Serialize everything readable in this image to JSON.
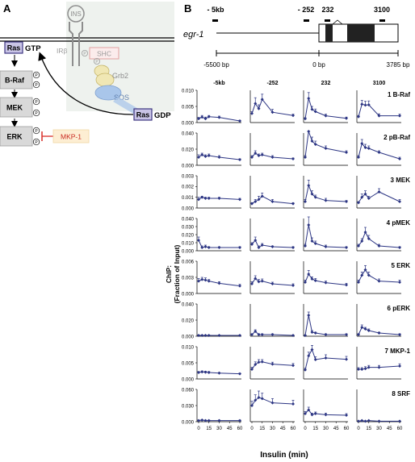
{
  "panel_a": {
    "label": "A",
    "ins": "INS",
    "irb": "IRβ",
    "p": "P",
    "shc": "SHC",
    "grb2": "Grb2",
    "sos": "SOS",
    "ras_gtp": "Ras",
    "gtp": "GTP",
    "ras_gdp": "Ras",
    "gdp": "GDP",
    "cascade": [
      {
        "name": "B-Raf",
        "phospho": 2
      },
      {
        "name": "MEK",
        "phospho": 2
      },
      {
        "name": "ERK",
        "phospho": 2
      }
    ],
    "mkp1": "MKP-1",
    "colors": {
      "ras_fill": "#c9c4e6",
      "ras_stroke": "#3d3580",
      "kinase_fill": "#d9d9d9",
      "mkp1_fill": "#fdeed3",
      "mkp1_text": "#c8261e",
      "inhibit": "#d9302a",
      "grb2_fill": "#f0e7b4",
      "sos_fill": "#a9c6ea",
      "faded": "#9a9a9a",
      "shc_stroke": "#e2a0a0"
    }
  },
  "panel_b": {
    "label": "B",
    "gene": "egr-1",
    "amplicons": [
      "- 5kb",
      "- 252",
      "232",
      "3100"
    ],
    "scale": {
      "left": "-5500 bp",
      "mid": "0 bp",
      "right": "3785 bp"
    },
    "columns": [
      "-5kb",
      "-252",
      "232",
      "3100"
    ],
    "y_axis_title": "ChIP:\n(Fraction of Input)",
    "x_axis_title": "Insulin (min)",
    "x_ticks": [
      "0",
      "15",
      "30",
      "45",
      "60"
    ],
    "series_color": "#2c3583"
  },
  "chart_data": {
    "type": "line",
    "x": [
      0,
      5,
      10,
      15,
      30,
      60
    ],
    "xlabel": "Insulin (min)",
    "ylabel": "ChIP: (Fraction of Input)",
    "columns": [
      "-5kb",
      "-252",
      "232",
      "3100"
    ],
    "rows": [
      {
        "index": "1",
        "name": "B-Raf",
        "yticks": [
          "0.000",
          "0.005",
          "0.010"
        ],
        "ylim": [
          0,
          0.01
        ],
        "series": [
          {
            "values": [
              0.0012,
              0.0017,
              0.0012,
              0.0018,
              0.0016,
              0.0005
            ],
            "err": [
              0.0004,
              0.0005,
              0.0005,
              0.0004,
              0.0004,
              0.0002
            ]
          },
          {
            "values": [
              0.0028,
              0.0059,
              0.0043,
              0.0072,
              0.0032,
              0.0022
            ],
            "err": [
              0.0006,
              0.0018,
              0.0012,
              0.0016,
              0.0009,
              0.0004
            ]
          },
          {
            "values": [
              0.0012,
              0.0075,
              0.0041,
              0.0034,
              0.0021,
              0.0013
            ],
            "err": [
              0.0003,
              0.0018,
              0.0009,
              0.0008,
              0.0005,
              0.0004
            ]
          },
          {
            "values": [
              0.0018,
              0.0057,
              0.0054,
              0.0055,
              0.0021,
              0.0021
            ],
            "err": [
              0.0004,
              0.0012,
              0.0012,
              0.0012,
              0.0006,
              0.0005
            ]
          }
        ]
      },
      {
        "index": "2",
        "name": "pB-Raf",
        "yticks": [
          "0.000",
          "0.020",
          "0.040"
        ],
        "ylim": [
          0,
          0.04
        ],
        "series": [
          {
            "values": [
              0.01,
              0.013,
              0.011,
              0.012,
              0.01,
              0.007
            ],
            "err": [
              0.003,
              0.002,
              0.002,
              0.002,
              0.002,
              0.001
            ]
          },
          {
            "values": [
              0.01,
              0.015,
              0.012,
              0.013,
              0.01,
              0.008
            ],
            "err": [
              0.002,
              0.003,
              0.002,
              0.002,
              0.002,
              0.001
            ]
          },
          {
            "values": [
              0.01,
              0.047,
              0.03,
              0.026,
              0.021,
              0.016
            ],
            "err": [
              0.002,
              0.008,
              0.005,
              0.004,
              0.003,
              0.002
            ]
          },
          {
            "values": [
              0.01,
              0.027,
              0.022,
              0.021,
              0.016,
              0.008
            ],
            "err": [
              0.002,
              0.005,
              0.004,
              0.003,
              0.002,
              0.002
            ]
          }
        ]
      },
      {
        "index": "3",
        "name": "MEK",
        "yticks": [
          "0.000",
          "0.001",
          "0.002",
          "0.003"
        ],
        "ylim": [
          0,
          0.003
        ],
        "series": [
          {
            "values": [
              0.0008,
              0.001,
              0.0009,
              0.0009,
              0.0009,
              0.0008
            ],
            "err": [
              0.0002,
              0.0001,
              0.0001,
              0.0001,
              0.0001,
              0.0001
            ]
          },
          {
            "values": [
              0.0004,
              0.0006,
              0.0008,
              0.0011,
              0.0006,
              0.0004
            ],
            "err": [
              0.0001,
              0.0002,
              0.0003,
              0.0003,
              0.0002,
              0.0001
            ]
          },
          {
            "values": [
              0.0006,
              0.0021,
              0.0013,
              0.001,
              0.0007,
              0.0006
            ],
            "err": [
              0.0002,
              0.0005,
              0.0003,
              0.0002,
              0.0002,
              0.0001
            ]
          },
          {
            "values": [
              0.0005,
              0.001,
              0.0013,
              0.0009,
              0.0015,
              0.0006
            ],
            "err": [
              0.0001,
              0.0003,
              0.0003,
              0.0002,
              0.0003,
              0.0002
            ]
          }
        ]
      },
      {
        "index": "4",
        "name": "pMEK",
        "yticks": [
          "0.000",
          "0.010",
          "0.020",
          "0.030",
          "0.040"
        ],
        "ylim": [
          0,
          0.04
        ],
        "series": [
          {
            "values": [
              0.013,
              0.004,
              0.005,
              0.004,
              0.004,
              0.004
            ],
            "err": [
              0.004,
              0.002,
              0.002,
              0.001,
              0.001,
              0.001
            ]
          },
          {
            "values": [
              0.008,
              0.013,
              0.004,
              0.007,
              0.005,
              0.004
            ],
            "err": [
              0.002,
              0.004,
              0.002,
              0.002,
              0.001,
              0.001
            ]
          },
          {
            "values": [
              0.006,
              0.032,
              0.012,
              0.009,
              0.005,
              0.004
            ],
            "err": [
              0.002,
              0.01,
              0.004,
              0.003,
              0.002,
              0.001
            ]
          },
          {
            "values": [
              0.006,
              0.012,
              0.023,
              0.015,
              0.006,
              0.004
            ],
            "err": [
              0.002,
              0.003,
              0.006,
              0.004,
              0.002,
              0.001
            ]
          }
        ]
      },
      {
        "index": "5",
        "name": "ERK",
        "yticks": [
          "0.000",
          "0.003",
          "0.006"
        ],
        "ylim": [
          0,
          0.006
        ],
        "series": [
          {
            "values": [
              0.0023,
              0.0026,
              0.0025,
              0.0023,
              0.0019,
              0.0014
            ],
            "err": [
              0.0005,
              0.0004,
              0.0004,
              0.0003,
              0.0003,
              0.0003
            ]
          },
          {
            "values": [
              0.0018,
              0.0028,
              0.0022,
              0.0023,
              0.0018,
              0.0015
            ],
            "err": [
              0.0004,
              0.0005,
              0.0004,
              0.0004,
              0.0003,
              0.0003
            ]
          },
          {
            "values": [
              0.0021,
              0.0036,
              0.0027,
              0.0024,
              0.002,
              0.0016
            ],
            "err": [
              0.0004,
              0.0007,
              0.0004,
              0.0004,
              0.0003,
              0.0003
            ]
          },
          {
            "values": [
              0.0021,
              0.0034,
              0.0044,
              0.0034,
              0.0023,
              0.0021
            ],
            "err": [
              0.0004,
              0.0006,
              0.0008,
              0.0006,
              0.0004,
              0.0004
            ]
          }
        ]
      },
      {
        "index": "6",
        "name": "pERK",
        "yticks": [
          "0.000",
          "0.020",
          "0.040"
        ],
        "ylim": [
          0,
          0.04
        ],
        "series": [
          {
            "values": [
              0.001,
              0.001,
              0.001,
              0.001,
              0.001,
              0.001
            ],
            "err": [
              0.0005,
              0.0005,
              0.0005,
              0.0005,
              0.0005,
              0.0005
            ]
          },
          {
            "values": [
              0.002,
              0.006,
              0.002,
              0.002,
              0.002,
              0.001
            ],
            "err": [
              0.001,
              0.002,
              0.001,
              0.001,
              0.001,
              0.0005
            ]
          },
          {
            "values": [
              0.001,
              0.026,
              0.005,
              0.004,
              0.002,
              0.002
            ],
            "err": [
              0.0005,
              0.004,
              0.002,
              0.001,
              0.001,
              0.001
            ]
          },
          {
            "values": [
              0.002,
              0.011,
              0.009,
              0.007,
              0.004,
              0.002
            ],
            "err": [
              0.001,
              0.003,
              0.002,
              0.002,
              0.001,
              0.001
            ]
          }
        ]
      },
      {
        "index": "7",
        "name": "MKP-1",
        "yticks": [
          "0.000",
          "0.005",
          "0.010"
        ],
        "ylim": [
          0,
          0.01
        ],
        "series": [
          {
            "values": [
              0.002,
              0.0022,
              0.0021,
              0.002,
              0.0018,
              0.0016
            ],
            "err": [
              0.0003,
              0.0003,
              0.0003,
              0.0003,
              0.0002,
              0.0002
            ]
          },
          {
            "values": [
              0.003,
              0.0045,
              0.0052,
              0.0053,
              0.0046,
              0.0042
            ],
            "err": [
              0.0006,
              0.0008,
              0.0008,
              0.0007,
              0.0006,
              0.0006
            ]
          },
          {
            "values": [
              0.0028,
              0.0072,
              0.0091,
              0.006,
              0.0065,
              0.0061
            ],
            "err": [
              0.0005,
              0.0011,
              0.0013,
              0.0009,
              0.001,
              0.0009
            ]
          },
          {
            "values": [
              0.003,
              0.003,
              0.0032,
              0.0036,
              0.0036,
              0.004
            ],
            "err": [
              0.0005,
              0.0005,
              0.0006,
              0.0006,
              0.0006,
              0.0007
            ]
          }
        ]
      },
      {
        "index": "8",
        "name": "SRF",
        "yticks": [
          "0.000",
          "0.030",
          "0.060"
        ],
        "ylim": [
          0,
          0.06
        ],
        "series": [
          {
            "values": [
              0.002,
              0.003,
              0.002,
              0.002,
              0.002,
              0.002
            ],
            "err": [
              0.001,
              0.001,
              0.001,
              0.001,
              0.001,
              0.001
            ]
          },
          {
            "values": [
              0.03,
              0.04,
              0.045,
              0.043,
              0.035,
              0.033
            ],
            "err": [
              0.008,
              0.01,
              0.012,
              0.01,
              0.008,
              0.007
            ]
          },
          {
            "values": [
              0.015,
              0.022,
              0.013,
              0.015,
              0.013,
              0.012
            ],
            "err": [
              0.004,
              0.005,
              0.003,
              0.003,
              0.003,
              0.003
            ]
          },
          {
            "values": [
              0.001,
              0.002,
              0.001,
              0.002,
              0.001,
              0.001
            ],
            "err": [
              0.0005,
              0.0005,
              0.0005,
              0.0005,
              0.0005,
              0.0005
            ]
          }
        ]
      }
    ]
  }
}
